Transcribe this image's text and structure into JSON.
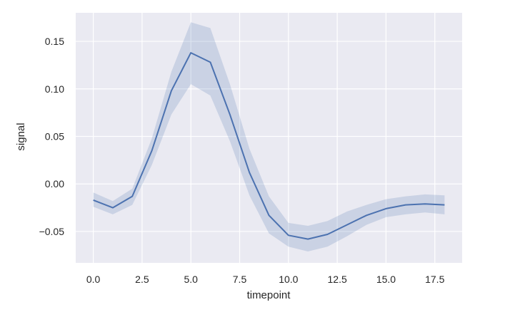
{
  "chart_data": {
    "type": "line",
    "title": "",
    "xlabel": "timepoint",
    "ylabel": "signal",
    "xlim": [
      -0.9,
      18.9
    ],
    "ylim": [
      -0.083,
      0.18
    ],
    "xticks": [
      0.0,
      2.5,
      5.0,
      7.5,
      10.0,
      12.5,
      15.0,
      17.5
    ],
    "xtick_labels": [
      "0.0",
      "2.5",
      "5.0",
      "7.5",
      "10.0",
      "12.5",
      "15.0",
      "17.5"
    ],
    "yticks": [
      -0.05,
      0.0,
      0.05,
      0.1,
      0.15
    ],
    "ytick_labels": [
      "−0.05",
      "0.00",
      "0.05",
      "0.10",
      "0.15"
    ],
    "grid": true,
    "colors": {
      "background": "#eaeaf2",
      "grid": "#ffffff",
      "line": "#4c72b0",
      "band": "#4c72b0"
    },
    "series": [
      {
        "x": [
          0,
          1,
          2,
          3,
          4,
          5,
          6,
          7,
          8,
          9,
          10,
          11,
          12,
          13,
          14,
          15,
          16,
          17,
          18
        ],
        "y": [
          -0.017,
          -0.025,
          -0.013,
          0.035,
          0.098,
          0.138,
          0.128,
          0.073,
          0.012,
          -0.033,
          -0.054,
          -0.058,
          -0.053,
          -0.043,
          -0.033,
          -0.026,
          -0.022,
          -0.021,
          -0.022
        ],
        "ci_lower": [
          -0.024,
          -0.032,
          -0.022,
          0.02,
          0.073,
          0.105,
          0.093,
          0.045,
          -0.012,
          -0.052,
          -0.066,
          -0.071,
          -0.066,
          -0.055,
          -0.043,
          -0.035,
          -0.032,
          -0.03,
          -0.032
        ],
        "ci_upper": [
          -0.009,
          -0.018,
          -0.005,
          0.048,
          0.118,
          0.17,
          0.164,
          0.105,
          0.037,
          -0.013,
          -0.041,
          -0.044,
          -0.039,
          -0.029,
          -0.022,
          -0.016,
          -0.013,
          -0.011,
          -0.012
        ]
      }
    ]
  }
}
